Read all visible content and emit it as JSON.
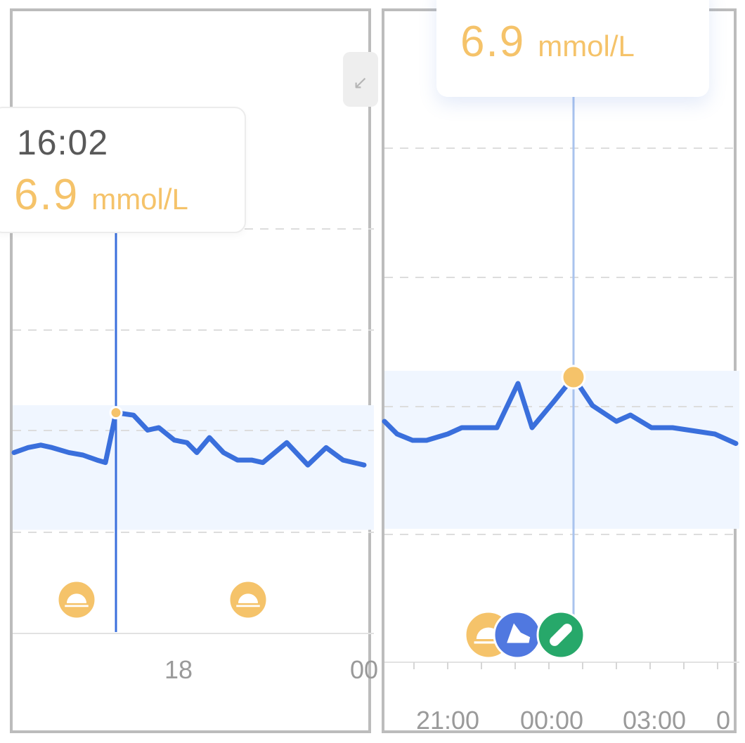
{
  "chart_data": [
    {
      "type": "line",
      "title": "",
      "xlabel": "",
      "ylabel": "",
      "x_ticks": [
        "18",
        "00"
      ],
      "series": [
        {
          "values": [
            6.05,
            6.15,
            6.2,
            6.15,
            6.05,
            6.0,
            5.95,
            5.9,
            5.85,
            6.85,
            6.8,
            6.5,
            6.55,
            6.3,
            6.25,
            6.05,
            6.35,
            6.05,
            5.9,
            5.9,
            5.85,
            6.25,
            5.8,
            6.15,
            5.9,
            5.8
          ]
        }
      ],
      "target_range": {
        "low": 4.5,
        "high": 7.0
      },
      "tooltip": {
        "time": "16:02",
        "value": "6.9",
        "unit": "mmol/L"
      },
      "events": [
        {
          "type": "meal",
          "icon": "meal-icon"
        },
        {
          "type": "meal",
          "icon": "meal-icon"
        }
      ],
      "grid": "horizontal-dashed",
      "colors": {
        "line": "#3a6fdc",
        "marker": "#f5c36a",
        "target_band": "#f0f6ff"
      }
    },
    {
      "type": "line",
      "title": "",
      "xlabel": "",
      "ylabel": "",
      "x_ticks": [
        "21:00",
        "00:00",
        "03:00",
        "0"
      ],
      "series": [
        {
          "values": [
            6.2,
            6.0,
            5.9,
            5.9,
            6.0,
            6.1,
            6.1,
            6.8,
            6.1,
            6.5,
            6.9,
            6.45,
            6.2,
            6.3,
            6.1,
            6.1,
            6.05,
            6.0,
            5.85
          ]
        }
      ],
      "target_range": {
        "low": 4.5,
        "high": 7.0
      },
      "tooltip": {
        "time": "",
        "value": "6.9",
        "unit": "mmol/L"
      },
      "events": [
        {
          "type": "meal",
          "icon": "meal-icon"
        },
        {
          "type": "exercise",
          "icon": "shoe-icon"
        },
        {
          "type": "medication",
          "icon": "pill-icon"
        }
      ],
      "grid": "horizontal-dashed",
      "colors": {
        "line": "#3a6fdc",
        "marker": "#f5c36a",
        "target_band": "#f0f6ff"
      }
    }
  ]
}
